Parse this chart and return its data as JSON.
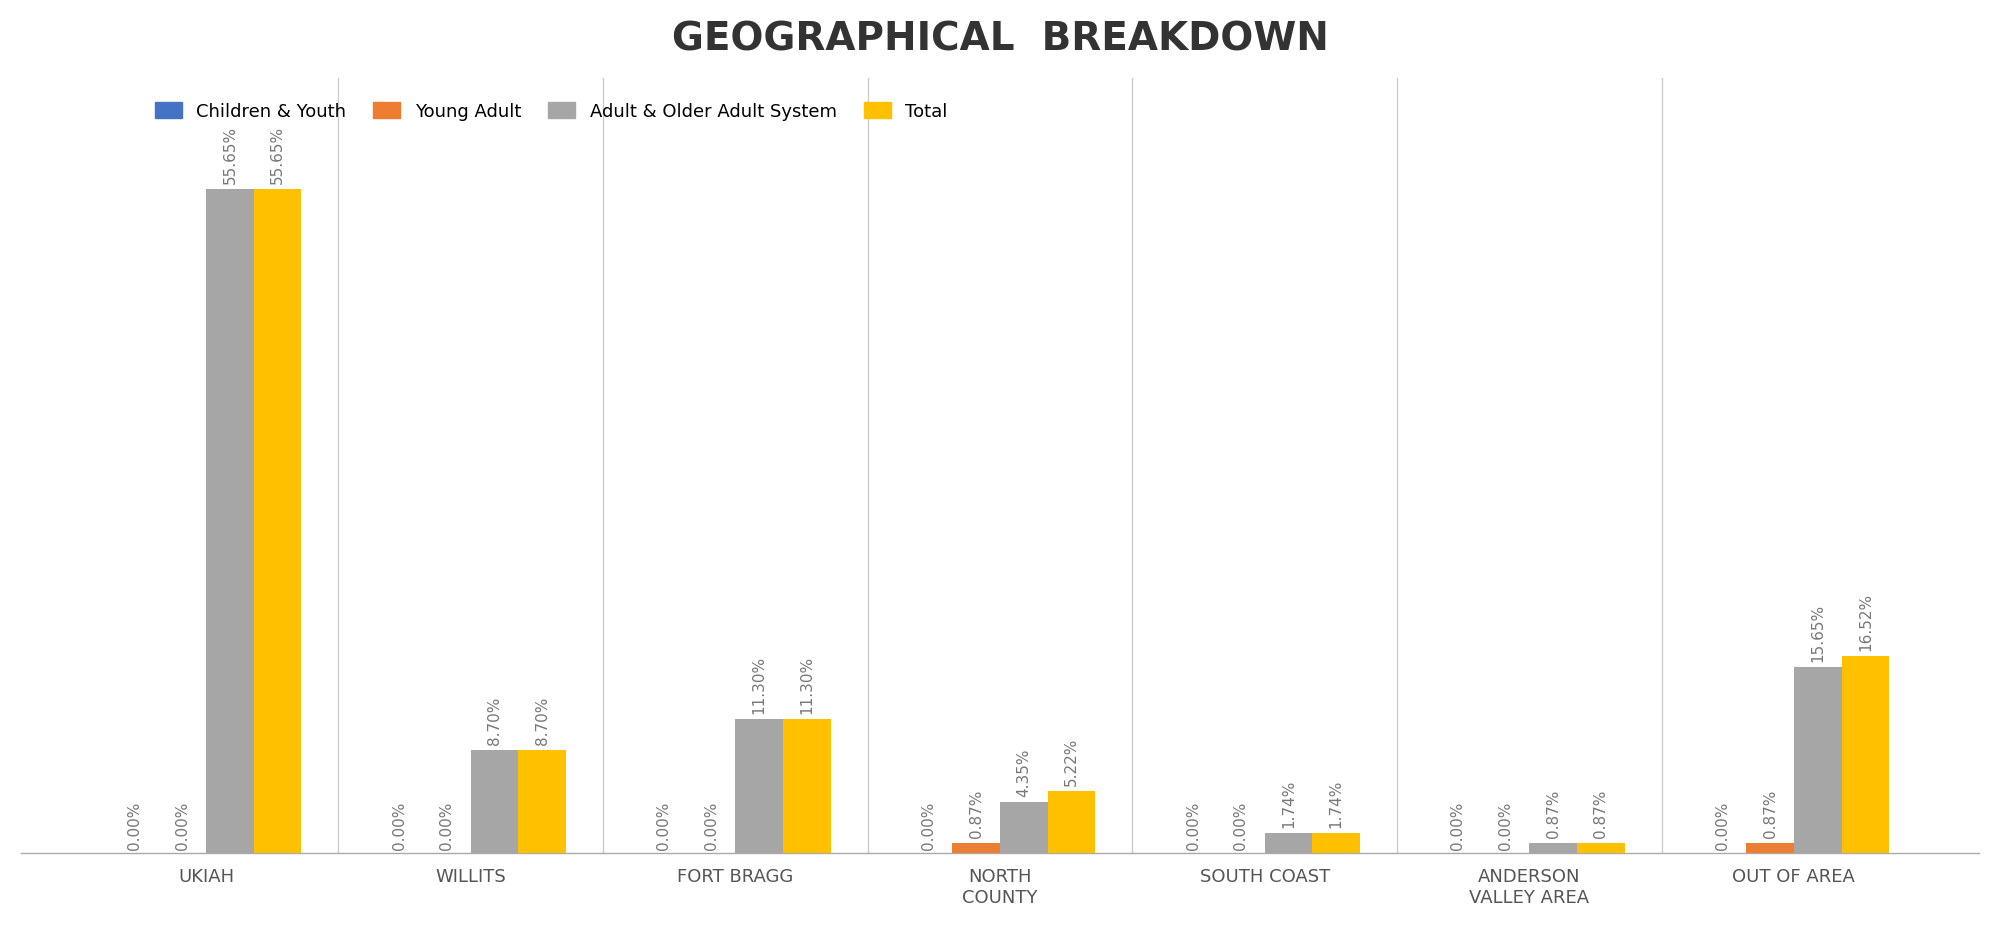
{
  "title": "GEOGRAPHICAL  BREAKDOWN",
  "categories": [
    "UKIAH",
    "WILLITS",
    "FORT BRAGG",
    "NORTH\nCOUNTY",
    "SOUTH COAST",
    "ANDERSON\nVALLEY AREA",
    "OUT OF AREA"
  ],
  "series": {
    "Children & Youth": [
      0.0,
      0.0,
      0.0,
      0.0,
      0.0,
      0.0,
      0.0
    ],
    "Young Adult": [
      0.0,
      0.0,
      0.0,
      0.87,
      0.0,
      0.0,
      0.87
    ],
    "Adult & Older Adult System": [
      55.65,
      8.7,
      11.3,
      4.35,
      1.74,
      0.87,
      15.65
    ],
    "Total": [
      55.65,
      8.7,
      11.3,
      5.22,
      1.74,
      0.87,
      16.52
    ]
  },
  "colors": {
    "Children & Youth": "#4472C4",
    "Young Adult": "#ED7D31",
    "Adult & Older Adult System": "#A6A6A6",
    "Total": "#FFC000"
  },
  "labels": {
    "Children & Youth": [
      "0.00%",
      "0.00%",
      "0.00%",
      "0.00%",
      "0.00%",
      "0.00%",
      "0.00%"
    ],
    "Young Adult": [
      "0.00%",
      "0.00%",
      "0.00%",
      "0.87%",
      "0.00%",
      "0.00%",
      "0.87%"
    ],
    "Adult & Older Adult System": [
      "55.65%",
      "8.70%",
      "11.30%",
      "4.35%",
      "1.74%",
      "0.87%",
      "15.65%"
    ],
    "Total": [
      "55.65%",
      "8.70%",
      "11.30%",
      "5.22%",
      "1.74%",
      "0.87%",
      "16.52%"
    ]
  },
  "ylim": [
    0,
    65
  ],
  "background_color": "#FFFFFF",
  "title_fontsize": 28,
  "legend_fontsize": 13,
  "bar_label_fontsize": 11,
  "xtick_fontsize": 13
}
